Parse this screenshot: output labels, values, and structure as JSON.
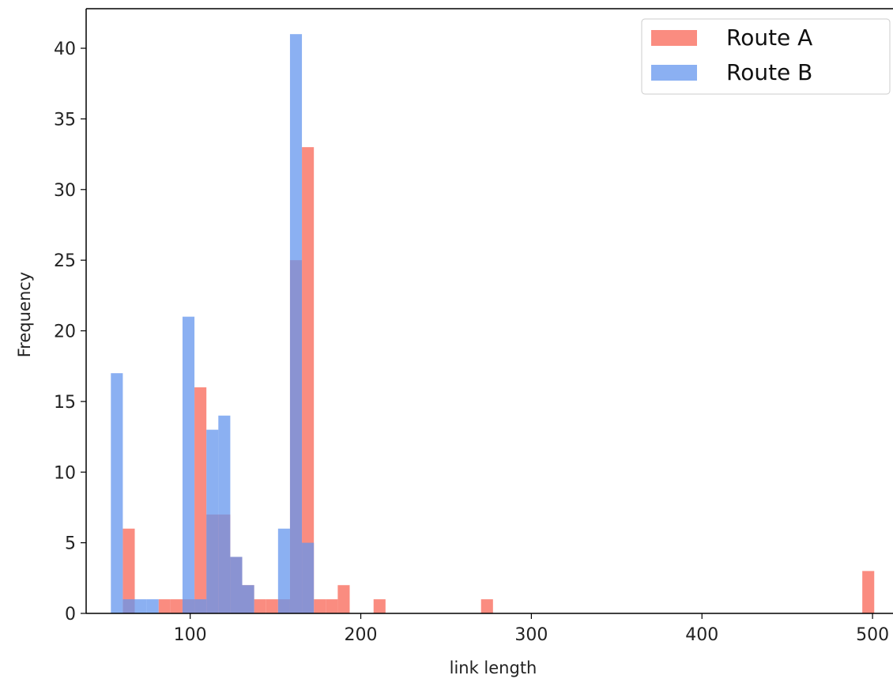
{
  "chart_data": {
    "type": "bar",
    "title": "",
    "xlabel": "link length",
    "ylabel": "Frequency",
    "xlim": [
      39,
      512
    ],
    "ylim": [
      0,
      42.8
    ],
    "xticks": [
      100,
      200,
      300,
      400,
      500
    ],
    "yticks": [
      0,
      5,
      10,
      15,
      20,
      25,
      30,
      35,
      40
    ],
    "grid": false,
    "legend_position": "top-right",
    "series": [
      {
        "name": "Route A",
        "color": "#fa8072",
        "bins": [
          {
            "x0": 60.5,
            "x1": 67.5,
            "count": 6
          },
          {
            "x0": 81.5,
            "x1": 88.5,
            "count": 1
          },
          {
            "x0": 88.5,
            "x1": 95.5,
            "count": 1
          },
          {
            "x0": 95.5,
            "x1": 102.5,
            "count": 1
          },
          {
            "x0": 102.5,
            "x1": 109.5,
            "count": 16
          },
          {
            "x0": 109.5,
            "x1": 116.5,
            "count": 7
          },
          {
            "x0": 116.5,
            "x1": 123.5,
            "count": 7
          },
          {
            "x0": 123.5,
            "x1": 130.5,
            "count": 4
          },
          {
            "x0": 130.5,
            "x1": 137.5,
            "count": 2
          },
          {
            "x0": 137.5,
            "x1": 144.5,
            "count": 1
          },
          {
            "x0": 144.5,
            "x1": 151.5,
            "count": 1
          },
          {
            "x0": 151.5,
            "x1": 158.5,
            "count": 1
          },
          {
            "x0": 158.5,
            "x1": 165.5,
            "count": 25
          },
          {
            "x0": 165.5,
            "x1": 172.5,
            "count": 33
          },
          {
            "x0": 172.5,
            "x1": 179.5,
            "count": 1
          },
          {
            "x0": 179.5,
            "x1": 186.5,
            "count": 1
          },
          {
            "x0": 186.5,
            "x1": 193.5,
            "count": 2
          },
          {
            "x0": 207.5,
            "x1": 214.5,
            "count": 1
          },
          {
            "x0": 270.5,
            "x1": 277.5,
            "count": 1
          },
          {
            "x0": 494.0,
            "x1": 501.0,
            "count": 3
          }
        ]
      },
      {
        "name": "Route B",
        "color": "#6495ed",
        "bins": [
          {
            "x0": 53.5,
            "x1": 60.5,
            "count": 17
          },
          {
            "x0": 60.5,
            "x1": 67.5,
            "count": 1
          },
          {
            "x0": 67.5,
            "x1": 74.5,
            "count": 1
          },
          {
            "x0": 74.5,
            "x1": 81.5,
            "count": 1
          },
          {
            "x0": 95.5,
            "x1": 102.5,
            "count": 21
          },
          {
            "x0": 102.5,
            "x1": 109.5,
            "count": 1
          },
          {
            "x0": 109.5,
            "x1": 116.5,
            "count": 13
          },
          {
            "x0": 116.5,
            "x1": 123.5,
            "count": 14
          },
          {
            "x0": 123.5,
            "x1": 130.5,
            "count": 4
          },
          {
            "x0": 130.5,
            "x1": 137.5,
            "count": 2
          },
          {
            "x0": 151.5,
            "x1": 158.5,
            "count": 6
          },
          {
            "x0": 158.5,
            "x1": 165.5,
            "count": 41
          },
          {
            "x0": 165.5,
            "x1": 172.5,
            "count": 5
          }
        ]
      }
    ]
  }
}
